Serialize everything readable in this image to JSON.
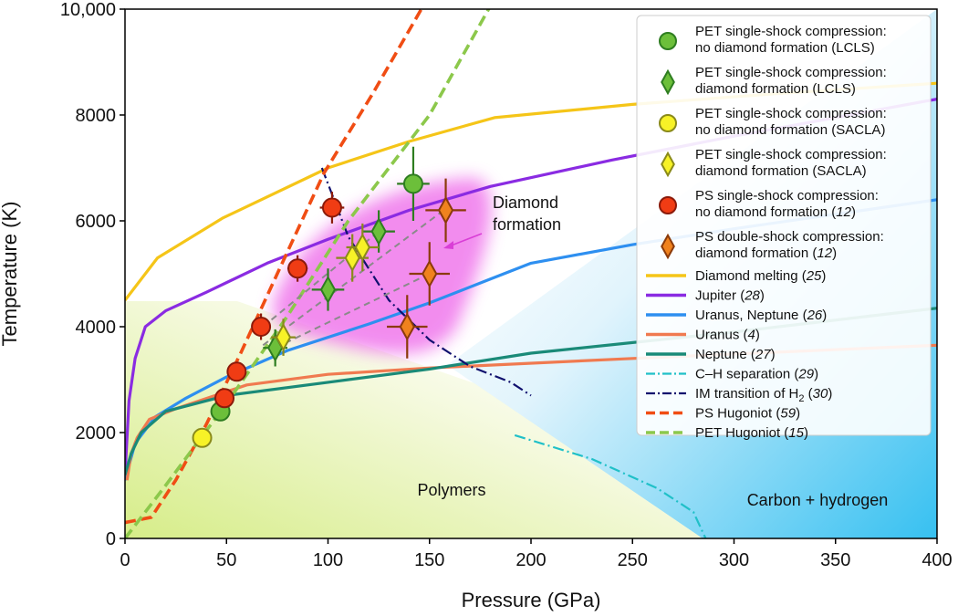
{
  "chart_data": {
    "type": "scatter",
    "xlabel": "Pressure (GPa)",
    "ylabel": "Temperature (K)",
    "xlim": [
      0,
      400
    ],
    "ylim": [
      0,
      10000
    ],
    "xticks": [
      0,
      50,
      100,
      150,
      200,
      250,
      300,
      350,
      400
    ],
    "yticks": [
      0,
      2000,
      4000,
      6000,
      8000,
      10000
    ],
    "xtick_labels": [
      "0",
      "50",
      "100",
      "150",
      "200",
      "250",
      "300",
      "350",
      "400"
    ],
    "ytick_labels": [
      "0",
      "2000",
      "4000",
      "6000",
      "8000",
      "10,000"
    ],
    "region_labels": {
      "polymers": "Polymers",
      "carbon": "Carbon + hydrogen",
      "diamond_line1": "Diamond",
      "diamond_line2": "formation"
    },
    "region_colors": {
      "polymers": "#e6f2a6",
      "carbon": "#39c2f2",
      "diamond": "#ee5ee8"
    },
    "legend": [
      {
        "label1": "PET single-shock compression:",
        "label2": "no diamond formation (LCLS)",
        "marker": "circle",
        "color": "#6cbf3a",
        "edge": "#2e7d20"
      },
      {
        "label1": "PET single-shock compression:",
        "label2": "diamond formation (LCLS)",
        "marker": "diamond",
        "color": "#6cbf3a",
        "edge": "#2e7d20"
      },
      {
        "label1": "PET single-shock compression:",
        "label2": "no diamond formation (SACLA)",
        "marker": "circle",
        "color": "#f7f227",
        "edge": "#8a8a1a"
      },
      {
        "label1": "PET single-shock compression:",
        "label2": "diamond formation (SACLA)",
        "marker": "diamond",
        "color": "#f7f227",
        "edge": "#8a8a1a"
      },
      {
        "label1": "PS single-shock compression:",
        "label2": "no diamond formation (",
        "ref": "12",
        "marker": "circle",
        "color": "#f03c14",
        "edge": "#8b1a0a"
      },
      {
        "label1": "PS double-shock compression:",
        "label2": "diamond formation (",
        "ref": "12",
        "marker": "diamond",
        "color": "#f0821e",
        "edge": "#8b3a0a"
      },
      {
        "label": "Diamond melting (",
        "ref": "25",
        "line": "solid",
        "color": "#f5c518"
      },
      {
        "label": "Jupiter (",
        "ref": "28",
        "line": "solid",
        "color": "#8a2be2"
      },
      {
        "label": "Uranus, Neptune (",
        "ref": "26",
        "line": "solid",
        "color": "#2e8ff0"
      },
      {
        "label": "Uranus (",
        "ref": "4",
        "line": "solid",
        "color": "#f07a50"
      },
      {
        "label": "Neptune (",
        "ref": "27",
        "line": "solid",
        "color": "#1a8a78"
      },
      {
        "label": "C–H separation (",
        "ref": "29",
        "line": "dashdot",
        "color": "#20c0c8"
      },
      {
        "label": "IM transition of H",
        "sub": "2",
        "label_after": " (",
        "ref": "30",
        "line": "dashdot",
        "color": "#10106e"
      },
      {
        "label": "PS Hugoniot (",
        "ref": "59",
        "line": "dashed",
        "color": "#f04d14"
      },
      {
        "label": "PET Hugoniot (",
        "ref": "15",
        "line": "dashed",
        "color": "#8cc84b"
      }
    ],
    "curves": {
      "diamond_melting": {
        "color": "#f5c518",
        "style": "solid",
        "points": [
          [
            0,
            4500
          ],
          [
            16,
            5300
          ],
          [
            48,
            6050
          ],
          [
            100,
            7000
          ],
          [
            140,
            7500
          ],
          [
            182,
            7950
          ],
          [
            250,
            8200
          ],
          [
            320,
            8400
          ],
          [
            400,
            8600
          ]
        ]
      },
      "jupiter": {
        "color": "#8a2be2",
        "style": "solid",
        "points": [
          [
            0,
            1200
          ],
          [
            2,
            2600
          ],
          [
            5,
            3400
          ],
          [
            10,
            4000
          ],
          [
            20,
            4300
          ],
          [
            40,
            4650
          ],
          [
            70,
            5200
          ],
          [
            100,
            5650
          ],
          [
            140,
            6200
          ],
          [
            180,
            6650
          ],
          [
            240,
            7150
          ],
          [
            300,
            7600
          ],
          [
            400,
            8300
          ]
        ]
      },
      "uranus_neptune": {
        "color": "#2e8ff0",
        "style": "solid",
        "points": [
          [
            0,
            1100
          ],
          [
            5,
            1800
          ],
          [
            15,
            2300
          ],
          [
            30,
            2650
          ],
          [
            50,
            3050
          ],
          [
            80,
            3550
          ],
          [
            120,
            4050
          ],
          [
            150,
            4450
          ],
          [
            180,
            4900
          ],
          [
            200,
            5200
          ],
          [
            250,
            5550
          ],
          [
            300,
            5850
          ],
          [
            400,
            6400
          ]
        ]
      },
      "uranus": {
        "color": "#f07a50",
        "style": "solid",
        "points": [
          [
            1,
            1100
          ],
          [
            3,
            1600
          ],
          [
            6,
            1900
          ],
          [
            12,
            2250
          ],
          [
            25,
            2450
          ],
          [
            60,
            2900
          ],
          [
            100,
            3100
          ],
          [
            150,
            3220
          ],
          [
            250,
            3400
          ],
          [
            400,
            3650
          ]
        ]
      },
      "neptune": {
        "color": "#1a8a78",
        "style": "solid",
        "points": [
          [
            0,
            1200
          ],
          [
            3,
            1600
          ],
          [
            8,
            2000
          ],
          [
            20,
            2400
          ],
          [
            50,
            2700
          ],
          [
            100,
            2950
          ],
          [
            150,
            3200
          ],
          [
            200,
            3500
          ],
          [
            300,
            3900
          ],
          [
            400,
            4350
          ]
        ]
      },
      "ch_separation": {
        "color": "#20c0c8",
        "style": "dashdot",
        "points": [
          [
            192,
            1950
          ],
          [
            230,
            1500
          ],
          [
            262,
            950
          ],
          [
            280,
            500
          ],
          [
            286,
            0
          ]
        ]
      },
      "im_transition": {
        "color": "#10106e",
        "style": "dashdot",
        "points": [
          [
            97,
            7000
          ],
          [
            110,
            5700
          ],
          [
            130,
            4500
          ],
          [
            150,
            3750
          ],
          [
            170,
            3250
          ],
          [
            190,
            2950
          ],
          [
            200,
            2700
          ]
        ]
      },
      "ps_hugoniot": {
        "color": "#f04d14",
        "style": "dashed",
        "points": [
          [
            0,
            300
          ],
          [
            13,
            400
          ],
          [
            25,
            1100
          ],
          [
            40,
            2150
          ],
          [
            57,
            3500
          ],
          [
            75,
            5000
          ],
          [
            98,
            6900
          ],
          [
            122,
            8400
          ],
          [
            149,
            10200
          ]
        ]
      },
      "pet_hugoniot": {
        "color": "#8cc84b",
        "style": "dashed",
        "points": [
          [
            0,
            0
          ],
          [
            20,
            1000
          ],
          [
            50,
            2550
          ],
          [
            80,
            4200
          ],
          [
            110,
            6000
          ],
          [
            150,
            8000
          ],
          [
            182,
            10200
          ]
        ]
      }
    },
    "connectors": [
      {
        "from": [
          68,
          4000
        ],
        "to": [
          125,
          5800
        ]
      },
      {
        "from": [
          68,
          3650
        ],
        "to": [
          157,
          6200
        ]
      },
      {
        "from": [
          74,
          3600
        ],
        "to": [
          150,
          5000
        ]
      }
    ],
    "series": [
      {
        "name": "PET no diamond (LCLS)",
        "marker": "circle",
        "color": "#6cbf3a",
        "edge": "#2e7d20",
        "points": [
          {
            "x": 47,
            "y": 2400,
            "xerr": 0,
            "yerr": 0
          },
          {
            "x": 142,
            "y": 6700,
            "xerr": 8,
            "yerr": 700
          }
        ]
      },
      {
        "name": "PET diamond (LCLS)",
        "marker": "diamond",
        "color": "#6cbf3a",
        "edge": "#2e7d20",
        "points": [
          {
            "x": 74,
            "y": 3600,
            "xerr": 6,
            "yerr": 350
          },
          {
            "x": 100,
            "y": 4700,
            "xerr": 8,
            "yerr": 400
          },
          {
            "x": 125,
            "y": 5800,
            "xerr": 8,
            "yerr": 400
          }
        ]
      },
      {
        "name": "PET no diamond (SACLA)",
        "marker": "circle",
        "color": "#f7f227",
        "edge": "#8a8a1a",
        "points": [
          {
            "x": 38,
            "y": 1900,
            "xerr": 0,
            "yerr": 0
          }
        ]
      },
      {
        "name": "PET diamond (SACLA)",
        "marker": "diamond",
        "color": "#f7f227",
        "edge": "#8a8a1a",
        "points": [
          {
            "x": 78,
            "y": 3800,
            "xerr": 6,
            "yerr": 350
          },
          {
            "x": 112,
            "y": 5300,
            "xerr": 8,
            "yerr": 450
          },
          {
            "x": 117,
            "y": 5500,
            "xerr": 8,
            "yerr": 450
          }
        ]
      },
      {
        "name": "PS single-shock no diamond",
        "marker": "circle",
        "color": "#f03c14",
        "edge": "#8b1a0a",
        "points": [
          {
            "x": 102,
            "y": 6250,
            "xerr": 6,
            "yerr": 300
          },
          {
            "x": 85,
            "y": 5100,
            "xerr": 5,
            "yerr": 250
          },
          {
            "x": 67,
            "y": 4000,
            "xerr": 4,
            "yerr": 250
          },
          {
            "x": 55,
            "y": 3150,
            "xerr": 0,
            "yerr": 0
          },
          {
            "x": 49,
            "y": 2650,
            "xerr": 0,
            "yerr": 0
          }
        ]
      },
      {
        "name": "PS double-shock diamond",
        "marker": "diamond",
        "color": "#f0821e",
        "edge": "#8b3a0a",
        "points": [
          {
            "x": 158,
            "y": 6200,
            "xerr": 10,
            "yerr": 600
          },
          {
            "x": 150,
            "y": 5000,
            "xerr": 10,
            "yerr": 600
          },
          {
            "x": 139,
            "y": 4000,
            "xerr": 10,
            "yerr": 600
          }
        ]
      }
    ]
  }
}
